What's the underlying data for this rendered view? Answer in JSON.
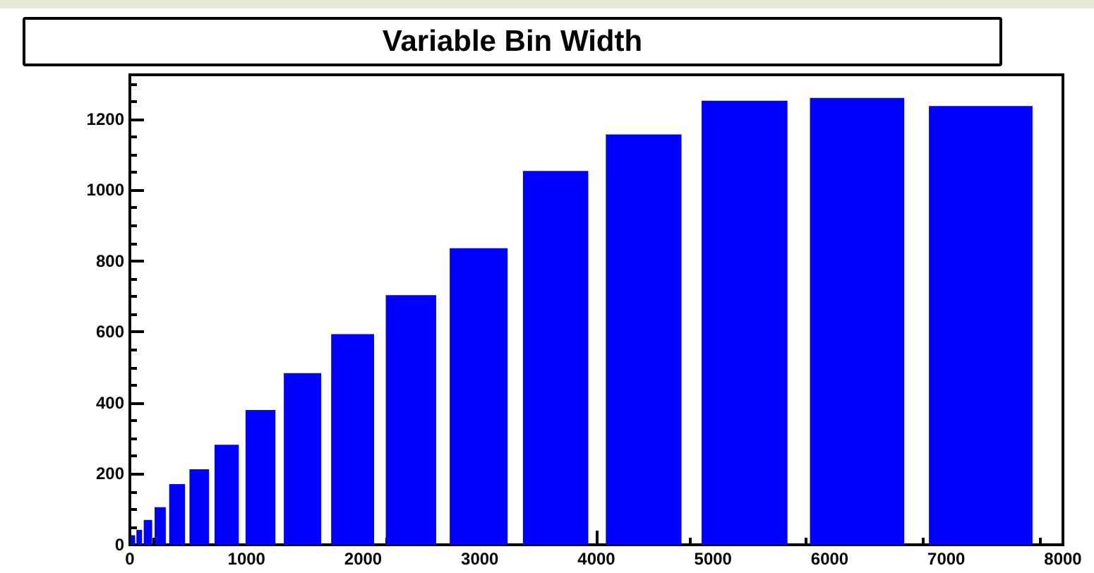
{
  "chart_data": {
    "type": "histogram",
    "title": "Variable Bin Width",
    "bins": [
      0,
      50,
      110,
      200,
      320,
      490,
      700,
      960,
      1280,
      1680,
      2140,
      2680,
      3300,
      4000,
      4810,
      5730,
      6740,
      7850
    ],
    "values": [
      27,
      42,
      70,
      106,
      171,
      213,
      282,
      380,
      484,
      594,
      704,
      836,
      1054,
      1157,
      1252,
      1260,
      1237
    ],
    "color": "#0000ff",
    "xlim": [
      0,
      8000
    ],
    "xticks": [
      0,
      1000,
      2000,
      3000,
      4000,
      5000,
      6000,
      7000,
      8000
    ],
    "ylim": [
      0,
      1325
    ],
    "yticks": [
      0,
      200,
      400,
      600,
      800,
      1000,
      1200
    ],
    "tick_labels": "xy"
  }
}
